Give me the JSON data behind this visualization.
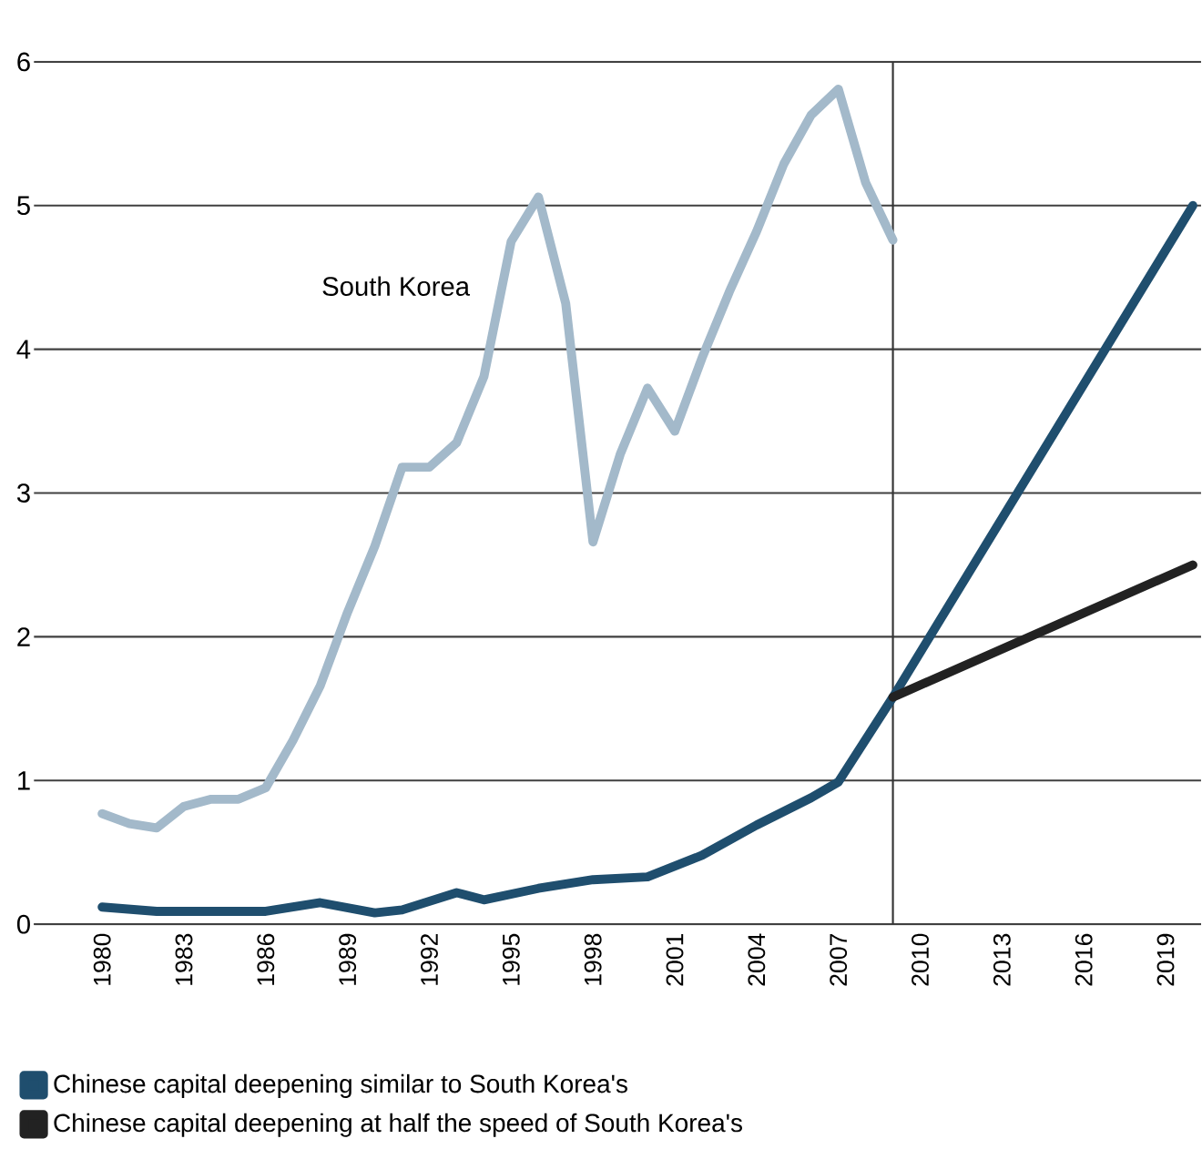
{
  "chart_data": {
    "type": "line",
    "series": [
      {
        "color": "#a3b9ca",
        "x": [
          1980,
          1981,
          1982,
          1983,
          1984,
          1985,
          1986,
          1987,
          1988,
          1989,
          1990,
          1991,
          1992,
          1993,
          1994,
          1995,
          1996,
          1997,
          1998,
          1999,
          2000,
          2001,
          2002,
          2003,
          2004,
          2005,
          2006,
          2007,
          2008,
          2009
        ],
        "values": [
          0.77,
          0.7,
          0.67,
          0.82,
          0.87,
          0.87,
          0.95,
          1.28,
          1.66,
          2.17,
          2.63,
          3.18,
          3.18,
          3.35,
          3.81,
          4.75,
          5.06,
          4.32,
          2.66,
          3.27,
          3.73,
          3.43,
          3.94,
          4.4,
          4.82,
          5.29,
          5.63,
          5.81,
          5.16,
          4.76
        ]
      },
      {
        "name": "Chinese capital deepening similar to South Korea's",
        "color": "#1f4e6e",
        "x": [
          1980,
          1982,
          1984,
          1986,
          1988,
          1990,
          1991,
          1993,
          1994,
          1996,
          1998,
          2000,
          2002,
          2004,
          2006,
          2007,
          2009,
          2020
        ],
        "values": [
          0.12,
          0.09,
          0.09,
          0.09,
          0.15,
          0.08,
          0.1,
          0.22,
          0.17,
          0.25,
          0.31,
          0.33,
          0.48,
          0.69,
          0.88,
          0.99,
          1.58,
          5.0
        ]
      },
      {
        "name": "Chinese capital deepening at half the speed of South Korea's",
        "color": "#222222",
        "x": [
          2009,
          2020
        ],
        "values": [
          1.58,
          2.5
        ]
      }
    ],
    "xlim": [
      1977.5,
      2020.3
    ],
    "ylim": [
      0,
      6
    ],
    "xticks": [
      1980,
      1983,
      1986,
      1989,
      1992,
      1995,
      1998,
      2001,
      2004,
      2007,
      2010,
      2013,
      2016,
      2019
    ],
    "yticks": [
      0,
      1,
      2,
      3,
      4,
      5,
      6
    ],
    "grid": "y",
    "ref_lines": [
      {
        "axis": "x",
        "value": 2009,
        "color": "#333333"
      }
    ],
    "annotations": [
      "South Korea"
    ],
    "legend": "bottom",
    "line_style": "solid"
  }
}
